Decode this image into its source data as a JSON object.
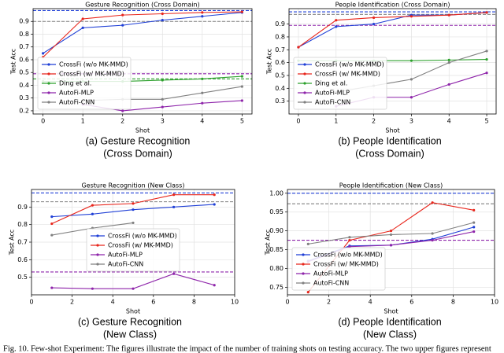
{
  "chart_data": [
    {
      "type": "line",
      "title": "Gesture Recognition (Cross Domain)",
      "xlabel": "Shot",
      "ylabel": "Test Acc",
      "caption": [
        "(a) Gesture Recognition",
        "(Cross Domain)"
      ],
      "xlim": [
        -0.25,
        5.25
      ],
      "xticks": [
        0,
        1,
        2,
        3,
        4,
        5
      ],
      "ylim": [
        0.175,
        1.0
      ],
      "yticks": [
        0.2,
        0.3,
        0.4,
        0.5,
        0.6,
        0.7,
        0.8,
        0.9
      ],
      "grid": true,
      "legend": "lower left",
      "series": [
        {
          "name": "CrossFi (w/o MK-MMD)",
          "color": "#1f3fd6",
          "x": [
            0,
            1,
            2,
            3,
            4,
            5
          ],
          "values": [
            0.65,
            0.85,
            0.87,
            0.91,
            0.94,
            0.97
          ]
        },
        {
          "name": "CrossFi (w/ MK-MMD)",
          "color": "#e8261c",
          "x": [
            0,
            1,
            2,
            3,
            4,
            5
          ],
          "values": [
            0.62,
            0.92,
            0.95,
            0.96,
            0.97,
            0.975
          ]
        },
        {
          "name": "Ding et al.",
          "color": "#2ca02c",
          "x": [
            0,
            1,
            2,
            3,
            4,
            5
          ],
          "values": [
            0.43,
            0.43,
            0.43,
            0.44,
            0.45,
            0.47
          ]
        },
        {
          "name": "AutoFi-MLP",
          "color": "#8e24aa",
          "x": [
            1,
            2,
            3,
            4,
            5
          ],
          "values": [
            0.25,
            0.2,
            0.23,
            0.26,
            0.28
          ]
        },
        {
          "name": "AutoFi-CNN",
          "color": "#808080",
          "x": [
            1,
            2,
            3,
            4,
            5
          ],
          "values": [
            0.28,
            0.29,
            0.29,
            0.34,
            0.39
          ]
        }
      ],
      "hlines": [
        {
          "value": 0.985,
          "color": "#1f3fd6"
        },
        {
          "value": 0.9,
          "color": "#808080"
        },
        {
          "value": 0.49,
          "color": "#8e24aa"
        },
        {
          "value": 0.45,
          "color": "#2ca02c"
        }
      ]
    },
    {
      "type": "line",
      "title": "People Identification (Cross Domain)",
      "xlabel": "Shot",
      "ylabel": "Test Acc",
      "caption": [
        "(b) People Identification",
        "(Cross Domain)"
      ],
      "xlim": [
        -0.25,
        5.25
      ],
      "xticks": [
        0,
        1,
        2,
        3,
        4,
        5
      ],
      "ylim": [
        0.2,
        1.02
      ],
      "yticks": [
        0.3,
        0.4,
        0.5,
        0.6,
        0.7,
        0.8,
        0.9
      ],
      "grid": true,
      "legend": "lower left",
      "series": [
        {
          "name": "CrossFi (w/o MK-MMD)",
          "color": "#1f3fd6",
          "x": [
            0,
            1,
            2,
            3,
            4,
            5
          ],
          "values": [
            0.72,
            0.88,
            0.9,
            0.97,
            0.97,
            0.99
          ]
        },
        {
          "name": "CrossFi (w/ MK-MMD)",
          "color": "#e8261c",
          "x": [
            0,
            1,
            2,
            3,
            4,
            5
          ],
          "values": [
            0.72,
            0.93,
            0.95,
            0.96,
            0.97,
            0.99
          ]
        },
        {
          "name": "Ding et al.",
          "color": "#2ca02c",
          "x": [
            0,
            1,
            2,
            3,
            4,
            5
          ],
          "values": [
            0.615,
            0.615,
            0.615,
            0.615,
            0.62,
            0.625
          ]
        },
        {
          "name": "AutoFi-MLP",
          "color": "#8e24aa",
          "x": [
            1,
            2,
            3,
            4,
            5
          ],
          "values": [
            0.26,
            0.33,
            0.33,
            0.43,
            0.52
          ]
        },
        {
          "name": "AutoFi-CNN",
          "color": "#808080",
          "x": [
            1,
            2,
            3,
            4,
            5
          ],
          "values": [
            0.37,
            0.42,
            0.47,
            0.6,
            0.69
          ]
        }
      ],
      "hlines": [
        {
          "value": 0.995,
          "color": "#1f3fd6"
        },
        {
          "value": 0.975,
          "color": "#808080"
        },
        {
          "value": 0.89,
          "color": "#8e24aa"
        }
      ]
    },
    {
      "type": "line",
      "title": "Gesture Recognition (New Class)",
      "xlabel": "Shot",
      "ylabel": "Test Acc",
      "caption": [
        "(c) Gesture Recognition",
        "(New Class)"
      ],
      "xlim": [
        0,
        10
      ],
      "xticks": [
        0,
        2,
        4,
        6,
        8,
        10
      ],
      "ylim": [
        0.4,
        1.0
      ],
      "yticks": [
        0.5,
        0.6,
        0.7,
        0.8,
        0.9
      ],
      "grid": true,
      "legend": "center",
      "series": [
        {
          "name": "CrossFi (w/o MK-MMD)",
          "color": "#1f3fd6",
          "x": [
            1,
            3,
            5,
            7,
            9
          ],
          "values": [
            0.845,
            0.86,
            0.885,
            0.9,
            0.915
          ]
        },
        {
          "name": "CrossFi (w/ MK-MMD)",
          "color": "#e8261c",
          "x": [
            1,
            3,
            5,
            7,
            9
          ],
          "values": [
            0.805,
            0.91,
            0.92,
            0.97,
            0.97
          ]
        },
        {
          "name": "AutoFi-MLP",
          "color": "#8e24aa",
          "x": [
            1,
            3,
            5,
            7,
            9
          ],
          "values": [
            0.44,
            0.435,
            0.435,
            0.52,
            0.455
          ]
        },
        {
          "name": "AutoFi-CNN",
          "color": "#808080",
          "x": [
            1,
            3,
            5
          ],
          "values": [
            0.74,
            0.78,
            0.81
          ]
        }
      ],
      "hlines": [
        {
          "value": 0.98,
          "color": "#1f3fd6"
        },
        {
          "value": 0.93,
          "color": "#808080"
        },
        {
          "value": 0.53,
          "color": "#8e24aa"
        }
      ]
    },
    {
      "type": "line",
      "title": "People Identification (New Class)",
      "xlabel": "Shot",
      "ylabel": "Test Acc",
      "caption": [
        "(d) People Identification",
        "(New Class)"
      ],
      "xlim": [
        0,
        10
      ],
      "xticks": [
        0,
        2,
        4,
        6,
        8,
        10
      ],
      "ylim": [
        0.73,
        1.01
      ],
      "yticks": [
        {
          "value": 0.75,
          "label": "0.75"
        },
        {
          "value": 0.8,
          "label": "0.80"
        },
        0.85,
        {
          "value": 0.9,
          "label": "0.90"
        },
        0.95,
        {
          "value": 1,
          "label": "1.00"
        }
      ],
      "grid": true,
      "legend": "lower left",
      "series": [
        {
          "name": "CrossFi (w/o MK-MMD)",
          "color": "#1f3fd6",
          "x": [
            1,
            3,
            5,
            7,
            9
          ],
          "values": [
            0.82,
            0.86,
            0.862,
            0.878,
            0.91
          ]
        },
        {
          "name": "CrossFi (w/ MK-MMD)",
          "color": "#e8261c",
          "x": [
            1,
            3,
            5,
            7,
            9
          ],
          "values": [
            0.737,
            0.875,
            0.9,
            0.975,
            0.955
          ]
        },
        {
          "name": "AutoFi-MLP",
          "color": "#8e24aa",
          "x": [
            1,
            3,
            5,
            7,
            9
          ],
          "values": [
            0.818,
            0.858,
            0.862,
            0.875,
            0.898
          ]
        },
        {
          "name": "AutoFi-CNN",
          "color": "#808080",
          "x": [
            1,
            3,
            5,
            7,
            9
          ],
          "values": [
            0.865,
            0.883,
            0.89,
            0.893,
            0.922
          ]
        }
      ],
      "hlines": [
        {
          "value": 1.0,
          "color": "#1f3fd6"
        },
        {
          "value": 0.972,
          "color": "#808080"
        },
        {
          "value": 0.875,
          "color": "#8e24aa"
        }
      ]
    }
  ],
  "figure_caption": "Fig. 10.  Few-shot Experiment: The figures illustrate the impact of the number of training shots on testing accuracy. The two upper figures represent"
}
